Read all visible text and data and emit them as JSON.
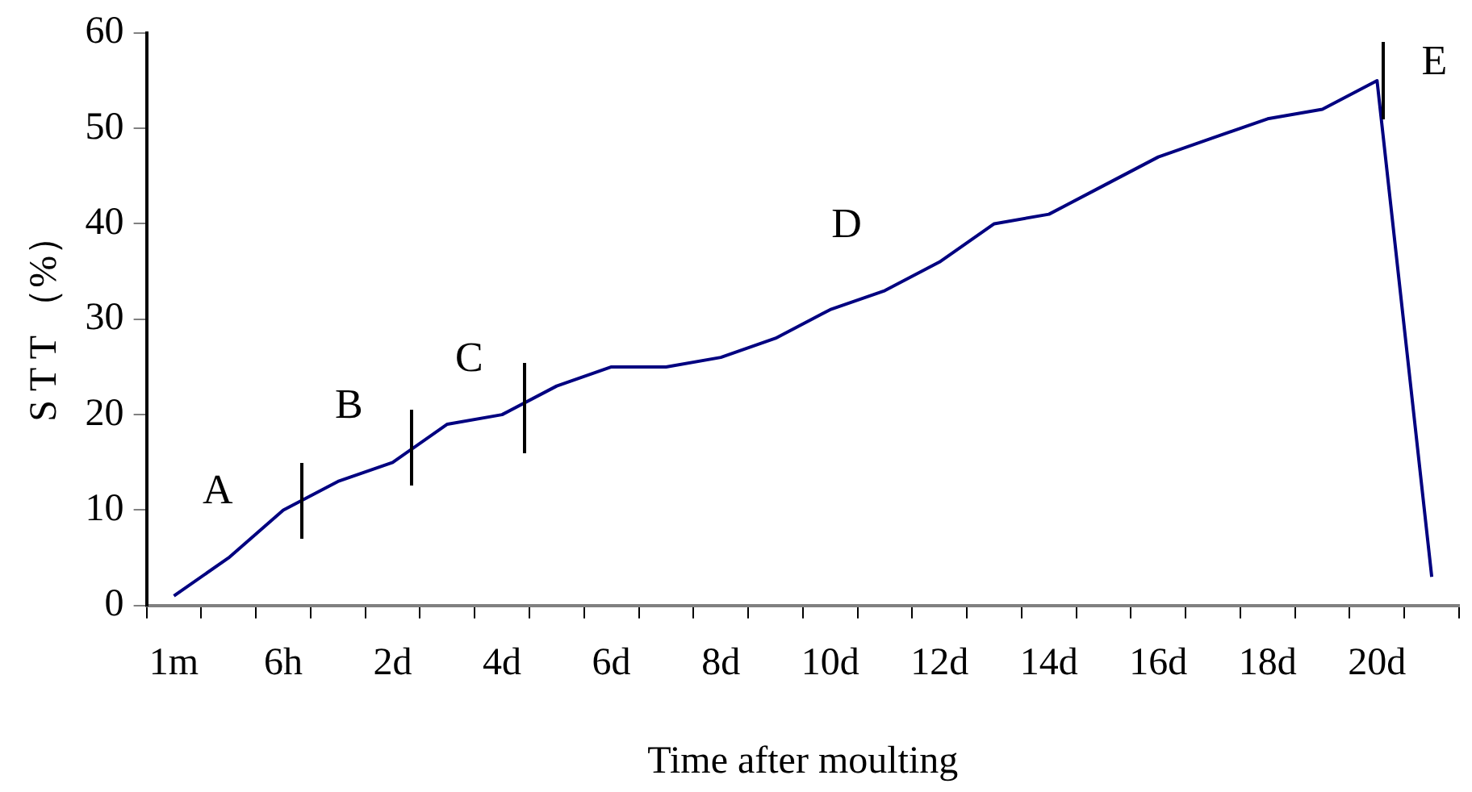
{
  "chart_data": {
    "type": "line",
    "xlabel": "Time after moulting",
    "ylabel": "S T T （%）",
    "categories": [
      "1m",
      null,
      "6h",
      null,
      "2d",
      null,
      "4d",
      null,
      "6d",
      null,
      "8d",
      null,
      "10d",
      null,
      "12d",
      null,
      "14d",
      null,
      "16d",
      null,
      "18d",
      null,
      "20d",
      null
    ],
    "series": [
      {
        "color": "#000080",
        "values": [
          1,
          5,
          10,
          13,
          15,
          19,
          20,
          23,
          25,
          25,
          26,
          28,
          31,
          33,
          36,
          40,
          41,
          44,
          47,
          49,
          51,
          52,
          55,
          3
        ]
      }
    ],
    "ylim": [
      0,
      60
    ],
    "yticks": [
      0,
      10,
      20,
      30,
      40,
      50,
      60
    ],
    "grid": false,
    "legend": false,
    "marker": "none",
    "line_style": "solid",
    "annotations": [
      "A",
      "B",
      "C",
      "D",
      "E"
    ]
  }
}
